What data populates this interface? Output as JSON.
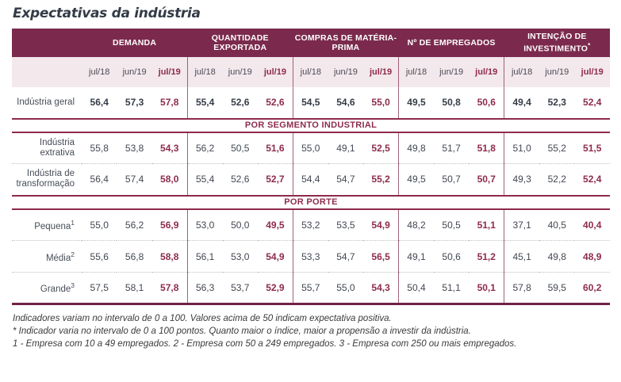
{
  "title": "Expectativas da indústria",
  "colors": {
    "header_bg": "#7B2A4D",
    "accent_text": "#8E2B4D",
    "subheader_bg": "#F3E8EC",
    "section_line": "#8D2B4D",
    "column_divider": "#A0617C",
    "bottom_border": "#702246",
    "body_text": "#414751",
    "title_text": "#333B46",
    "footnote_text": "#3A3A3A"
  },
  "table": {
    "column_groups": [
      {
        "label": "DEMANDA",
        "sup": ""
      },
      {
        "label": "QUANTIDADE EXPORTADA",
        "sup": ""
      },
      {
        "label": "COMPRAS DE MATÉRIA-PRIMA",
        "sup": ""
      },
      {
        "label": "Nº DE EMPREGADOS",
        "sup": ""
      },
      {
        "label": "INTENÇÃO DE INVESTIMENTO",
        "sup": "*"
      }
    ],
    "periods": [
      "jul/18",
      "jun/19",
      "jul/19"
    ],
    "rows": [
      {
        "type": "data",
        "label": "Indústria geral",
        "sup": "",
        "emphasis": true,
        "values": [
          "56,4",
          "57,3",
          "57,8",
          "55,4",
          "52,6",
          "52,6",
          "54,5",
          "54,6",
          "55,0",
          "49,5",
          "50,8",
          "50,6",
          "49,4",
          "52,3",
          "52,4"
        ]
      },
      {
        "type": "section",
        "label": "POR SEGMENTO INDUSTRIAL"
      },
      {
        "type": "data",
        "label": "Indústria extrativa",
        "sup": "",
        "emphasis": false,
        "values": [
          "55,8",
          "53,8",
          "54,3",
          "56,2",
          "50,5",
          "51,6",
          "55,0",
          "49,1",
          "52,5",
          "49,8",
          "51,7",
          "51,8",
          "51,0",
          "55,2",
          "51,5"
        ]
      },
      {
        "type": "data",
        "label": "Indústria de transformação",
        "sup": "",
        "emphasis": false,
        "values": [
          "56,4",
          "57,4",
          "58,0",
          "55,4",
          "52,6",
          "52,7",
          "54,4",
          "54,7",
          "55,2",
          "49,5",
          "50,7",
          "50,7",
          "49,3",
          "52,2",
          "52,4"
        ]
      },
      {
        "type": "section",
        "label": "POR PORTE"
      },
      {
        "type": "data",
        "label": "Pequena",
        "sup": "1",
        "emphasis": false,
        "values": [
          "55,0",
          "56,2",
          "56,9",
          "53,0",
          "50,0",
          "49,5",
          "53,2",
          "53,5",
          "54,9",
          "48,2",
          "50,5",
          "51,1",
          "37,1",
          "40,5",
          "40,4"
        ]
      },
      {
        "type": "data",
        "label": "Média",
        "sup": "2",
        "emphasis": false,
        "values": [
          "55,6",
          "56,8",
          "58,8",
          "56,1",
          "53,0",
          "54,9",
          "53,3",
          "54,7",
          "56,5",
          "49,1",
          "50,6",
          "51,2",
          "45,1",
          "49,8",
          "48,9"
        ]
      },
      {
        "type": "data",
        "label": "Grande",
        "sup": "3",
        "emphasis": false,
        "values": [
          "57,5",
          "58,1",
          "57,8",
          "56,3",
          "53,7",
          "52,9",
          "55,7",
          "55,0",
          "54,3",
          "50,4",
          "51,1",
          "50,1",
          "57,8",
          "59,5",
          "60,2"
        ]
      }
    ]
  },
  "footnotes": [
    "Indicadores variam no intervalo de 0 a 100. Valores acima de 50 indicam expectativa positiva.",
    "* Indicador varia no intervalo de 0 a 100 pontos. Quanto maior o índice, maior a propensão a investir da indústria.",
    "1 - Empresa com 10 a 49 empregados. 2 - Empresa com 50 a 249 empregados. 3 - Empresa com 250 ou mais empregados."
  ],
  "chart_data": {
    "type": "table",
    "title": "Expectativas da indústria",
    "column_groups": [
      "DEMANDA",
      "QUANTIDADE EXPORTADA",
      "COMPRAS DE MATÉRIA-PRIMA",
      "Nº DE EMPREGADOS",
      "INTENÇÃO DE INVESTIMENTO*"
    ],
    "periods": [
      "jul/18",
      "jun/19",
      "jul/19"
    ],
    "row_labels": [
      "Indústria geral",
      "Indústria extrativa",
      "Indústria de transformação",
      "Pequena¹",
      "Média²",
      "Grande³"
    ],
    "sections": {
      "POR SEGMENTO INDUSTRIAL": [
        "Indústria extrativa",
        "Indústria de transformação"
      ],
      "POR PORTE": [
        "Pequena¹",
        "Média²",
        "Grande³"
      ]
    },
    "values": {
      "Indústria geral": [
        56.4,
        57.3,
        57.8,
        55.4,
        52.6,
        52.6,
        54.5,
        54.6,
        55.0,
        49.5,
        50.8,
        50.6,
        49.4,
        52.3,
        52.4
      ],
      "Indústria extrativa": [
        55.8,
        53.8,
        54.3,
        56.2,
        50.5,
        51.6,
        55.0,
        49.1,
        52.5,
        49.8,
        51.7,
        51.8,
        51.0,
        55.2,
        51.5
      ],
      "Indústria de transformação": [
        56.4,
        57.4,
        58.0,
        55.4,
        52.6,
        52.7,
        54.4,
        54.7,
        55.2,
        49.5,
        50.7,
        50.7,
        49.3,
        52.2,
        52.4
      ],
      "Pequena¹": [
        55.0,
        56.2,
        56.9,
        53.0,
        50.0,
        49.5,
        53.2,
        53.5,
        54.9,
        48.2,
        50.5,
        51.1,
        37.1,
        40.5,
        40.4
      ],
      "Média²": [
        55.6,
        56.8,
        58.8,
        56.1,
        53.0,
        54.9,
        53.3,
        54.7,
        56.5,
        49.1,
        50.6,
        51.2,
        45.1,
        49.8,
        48.9
      ],
      "Grande³": [
        57.5,
        58.1,
        57.8,
        56.3,
        53.7,
        52.9,
        55.7,
        55.0,
        54.3,
        50.4,
        51.1,
        50.1,
        57.8,
        59.5,
        60.2
      ]
    },
    "value_range": [
      0,
      100
    ]
  }
}
